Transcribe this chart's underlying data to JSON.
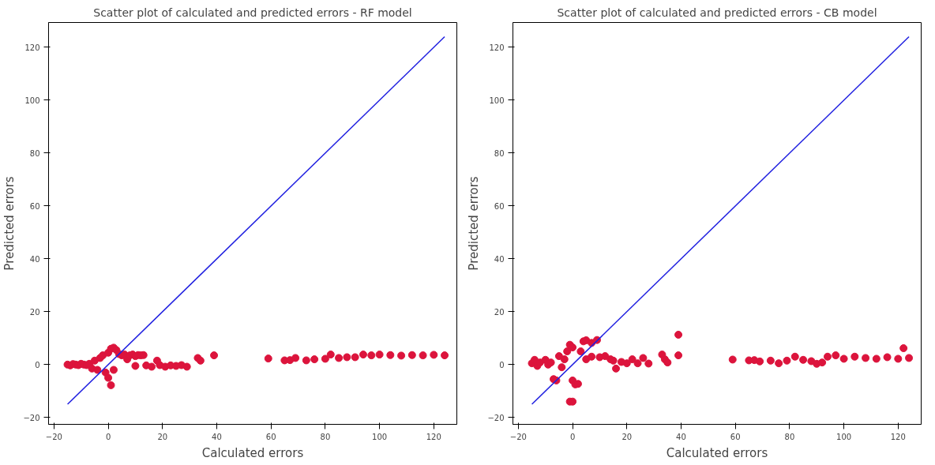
{
  "chart_data": [
    {
      "type": "scatter",
      "title": "Scatter plot of calculated and predicted errors - RF model",
      "xlabel": "Calculated errors",
      "ylabel": "Predicted errors",
      "xlim": [
        -22,
        128.5
      ],
      "ylim": [
        -22.6,
        129.4
      ],
      "xticks": [
        -20,
        0,
        20,
        40,
        60,
        80,
        100,
        120
      ],
      "yticks": [
        -20,
        0,
        20,
        40,
        60,
        80,
        100,
        120
      ],
      "grid": false,
      "series": [
        {
          "marker": "circle",
          "color": "#dc143c",
          "x": [
            -15,
            -14,
            -13,
            -12,
            -11,
            -10,
            -9,
            -8,
            -7,
            -6,
            -5,
            -4,
            -3,
            -2,
            -1,
            0,
            0,
            1,
            1,
            2,
            3,
            2,
            4,
            5,
            6,
            7,
            8,
            9,
            10,
            11,
            12,
            13,
            10,
            14,
            16,
            18,
            19,
            21,
            23,
            25,
            27,
            29,
            33,
            34,
            39,
            59,
            65,
            67,
            69,
            73,
            76,
            80,
            82,
            85,
            88,
            91,
            94,
            97,
            100,
            104,
            108,
            112,
            116,
            120,
            124
          ],
          "values": [
            0,
            -0.3,
            0.2,
            0,
            -0.2,
            0.3,
            0,
            -0.2,
            0.3,
            -1.5,
            1.5,
            -2,
            2.5,
            3.5,
            -3,
            4.5,
            -5,
            -7.8,
            6,
            6.4,
            5.5,
            -2,
            4,
            3.5,
            3.8,
            2,
            3.5,
            3.8,
            3.2,
            3.6,
            3.5,
            3.6,
            -0.5,
            -0.3,
            -0.8,
            1.5,
            -0.2,
            -0.8,
            -0.3,
            -0.5,
            -0.2,
            -0.8,
            2.5,
            1.5,
            3.5,
            2.3,
            1.6,
            1.7,
            2.5,
            1.6,
            2,
            2.2,
            3.8,
            2.5,
            2.8,
            2.8,
            3.8,
            3.5,
            3.8,
            3.6,
            3.4,
            3.6,
            3.5,
            3.7,
            3.5
          ]
        },
        {
          "type": "line",
          "color": "#2020e0",
          "x": [
            -15,
            124
          ],
          "values": [
            -15,
            124
          ]
        }
      ]
    },
    {
      "type": "scatter",
      "title": "Scatter plot of calculated and predicted errors - CB model",
      "xlabel": "Calculated errors",
      "ylabel": "Predicted errors",
      "xlim": [
        -22,
        128.5
      ],
      "ylim": [
        -22.6,
        129.4
      ],
      "xticks": [
        -20,
        0,
        20,
        40,
        60,
        80,
        100,
        120
      ],
      "yticks": [
        -20,
        0,
        20,
        40,
        60,
        80,
        100,
        120
      ],
      "grid": false,
      "series": [
        {
          "marker": "circle",
          "color": "#dc143c",
          "x": [
            -15,
            -14,
            -13,
            -12,
            -10,
            -9,
            -8,
            -7,
            -6,
            -5,
            -4,
            -3,
            -2,
            -1,
            -1,
            0,
            0,
            0,
            1,
            2,
            3,
            4,
            5,
            7,
            9,
            5,
            7,
            10,
            12,
            14,
            16,
            15,
            18,
            20,
            22,
            24,
            26,
            28,
            33,
            34,
            35,
            39,
            39,
            59,
            65,
            67,
            69,
            73,
            76,
            79,
            82,
            85,
            88,
            90,
            92,
            94,
            97,
            100,
            104,
            108,
            112,
            116,
            120,
            122,
            124
          ],
          "values": [
            0.5,
            1.8,
            -0.5,
            0.8,
            1.8,
            0,
            0.8,
            -5.5,
            -6,
            3.2,
            -1,
            2,
            5,
            7.5,
            -14,
            -14,
            6.5,
            -6,
            -7.5,
            -7.3,
            5,
            8.8,
            9.2,
            8.2,
            9.3,
            2,
            3,
            2.8,
            3.2,
            2,
            -1.5,
            1.5,
            1,
            0.5,
            2,
            0.5,
            2.5,
            0.4,
            3.8,
            2,
            0.8,
            11.3,
            3.5,
            1.9,
            1.6,
            1.7,
            1.2,
            1.5,
            0.5,
            1.5,
            3,
            1.8,
            1.3,
            0.3,
            0.8,
            3,
            3.5,
            2.2,
            3,
            2.5,
            2.2,
            2.8,
            2.2,
            6.2,
            2.5
          ]
        },
        {
          "type": "line",
          "color": "#2020e0",
          "x": [
            -15,
            124
          ],
          "values": [
            -15,
            124
          ]
        }
      ]
    }
  ]
}
